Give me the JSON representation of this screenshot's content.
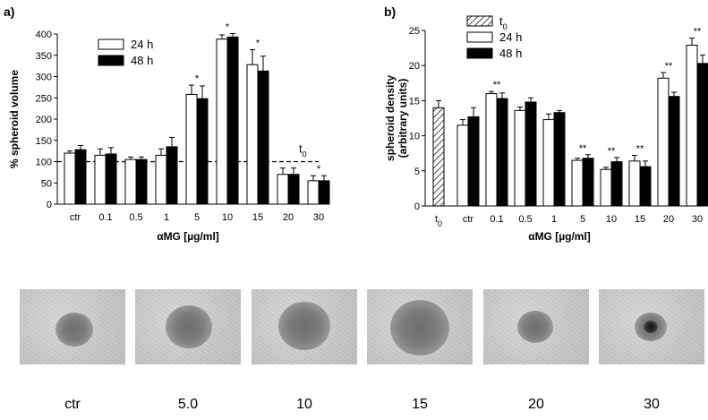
{
  "chart_data": [
    {
      "panel_label": "a)",
      "type": "bar",
      "categories": [
        "ctr",
        "0.1",
        "0.5",
        "1",
        "5",
        "10",
        "15",
        "20",
        "30"
      ],
      "series": [
        {
          "name": "24 h",
          "color": "#ffffff",
          "values": [
            120,
            115,
            105,
            115,
            258,
            388,
            328,
            70,
            55
          ],
          "errors": [
            5,
            15,
            6,
            15,
            22,
            10,
            35,
            15,
            12
          ]
        },
        {
          "name": "48 h",
          "color": "#000000",
          "values": [
            128,
            118,
            105,
            135,
            248,
            393,
            313,
            70,
            55
          ],
          "errors": [
            10,
            15,
            6,
            22,
            30,
            8,
            35,
            15,
            12
          ]
        }
      ],
      "significance": [
        {
          "index": 4,
          "mark": "*"
        },
        {
          "index": 5,
          "mark": "*"
        },
        {
          "index": 6,
          "mark": "*"
        },
        {
          "index": 8,
          "mark": "*"
        }
      ],
      "reference_line": {
        "value": 100,
        "label": "t0"
      },
      "yticks": [
        0,
        50,
        100,
        150,
        200,
        250,
        300,
        350,
        400
      ],
      "ylim": [
        0,
        400
      ],
      "ylabel": "% spheroid volume",
      "xlabel": "αMG [µg/ml]",
      "legend_position": "top-left"
    },
    {
      "panel_label": "b)",
      "type": "bar",
      "t0": {
        "label": "t0",
        "value": 14.0,
        "error": 1.0
      },
      "categories": [
        "ctr",
        "0.1",
        "0.5",
        "1",
        "5",
        "10",
        "15",
        "20",
        "30"
      ],
      "series": [
        {
          "name": "24 h",
          "color": "#ffffff",
          "values": [
            11.5,
            16.0,
            13.6,
            12.3,
            6.5,
            5.2,
            6.4,
            18.2,
            22.9
          ],
          "errors": [
            0.8,
            0.3,
            0.5,
            0.8,
            0.3,
            0.3,
            0.8,
            0.8,
            1.0
          ]
        },
        {
          "name": "48 h",
          "color": "#000000",
          "values": [
            12.7,
            15.3,
            14.8,
            13.3,
            6.8,
            6.3,
            5.6,
            15.6,
            20.3
          ],
          "errors": [
            1.3,
            0.8,
            0.6,
            0.3,
            0.5,
            0.6,
            0.8,
            0.6,
            1.2
          ]
        }
      ],
      "significance": [
        {
          "index": 1,
          "mark": "**"
        },
        {
          "index": 4,
          "mark": "**"
        },
        {
          "index": 5,
          "mark": "**"
        },
        {
          "index": 6,
          "mark": "**"
        },
        {
          "index": 7,
          "mark": "**"
        },
        {
          "index": 8,
          "mark": "**"
        }
      ],
      "yticks": [
        0,
        5,
        10,
        15,
        20,
        25
      ],
      "ylim": [
        0,
        25
      ],
      "ylabel": "spheroid density",
      "ylabel2": "(arbitrary units)",
      "xlabel": "αMG [µg/ml]",
      "legend_position": "top-left"
    }
  ],
  "photos": {
    "labels": [
      "ctr",
      "5.0",
      "10",
      "15",
      "20",
      "30"
    ]
  }
}
